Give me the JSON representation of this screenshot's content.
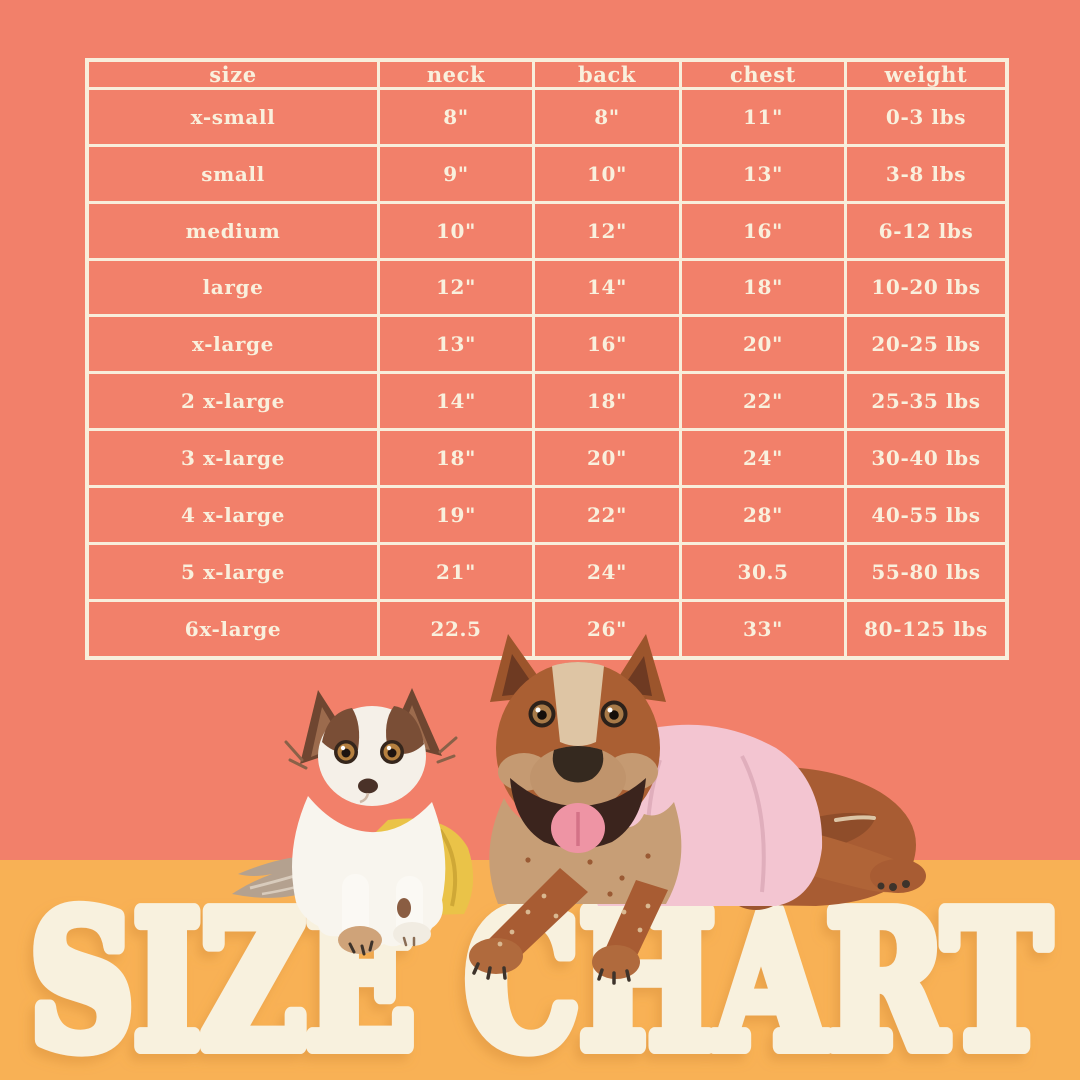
{
  "page": {
    "background_color": "#f2806a",
    "band_color": "#f8b155",
    "cream_color": "#f8eedb"
  },
  "title": {
    "text": "SIZE CHART",
    "color": "#f8f1de"
  },
  "size_table": {
    "headers": [
      "size",
      "neck",
      "back",
      "chest",
      "weight"
    ],
    "rows": [
      [
        "x-small",
        "8\"",
        "8\"",
        "11\"",
        "0-3 lbs"
      ],
      [
        "small",
        "9\"",
        "10\"",
        "13\"",
        "3-8 lbs"
      ],
      [
        "medium",
        "10\"",
        "12\"",
        "16\"",
        "6-12 lbs"
      ],
      [
        "large",
        "12\"",
        "14\"",
        "18\"",
        "10-20 lbs"
      ],
      [
        "x-large",
        "13\"",
        "16\"",
        "20\"",
        "20-25 lbs"
      ],
      [
        "2 x-large",
        "14\"",
        "18\"",
        "22\"",
        "25-35 lbs"
      ],
      [
        "3 x-large",
        "18\"",
        "20\"",
        "24\"",
        "30-40 lbs"
      ],
      [
        "4 x-large",
        "19\"",
        "22\"",
        "28\"",
        "40-55 lbs"
      ],
      [
        "5 x-large",
        "21\"",
        "24\"",
        "30.5",
        "55-80 lbs"
      ],
      [
        "6x-large",
        "22.5",
        "26\"",
        "33\"",
        "80-125 lbs"
      ]
    ]
  },
  "chart_data": {
    "type": "table",
    "title": "SIZE CHART",
    "columns": [
      "size",
      "neck",
      "back",
      "chest",
      "weight"
    ],
    "rows": [
      [
        "x-small",
        "8\"",
        "8\"",
        "11\"",
        "0-3 lbs"
      ],
      [
        "small",
        "9\"",
        "10\"",
        "13\"",
        "3-8 lbs"
      ],
      [
        "medium",
        "10\"",
        "12\"",
        "16\"",
        "6-12 lbs"
      ],
      [
        "large",
        "12\"",
        "14\"",
        "18\"",
        "10-20 lbs"
      ],
      [
        "x-large",
        "13\"",
        "16\"",
        "20\"",
        "20-25 lbs"
      ],
      [
        "2 x-large",
        "14\"",
        "18\"",
        "22\"",
        "25-35 lbs"
      ],
      [
        "3 x-large",
        "18\"",
        "20\"",
        "24\"",
        "30-40 lbs"
      ],
      [
        "4 x-large",
        "19\"",
        "22\"",
        "28\"",
        "40-55 lbs"
      ],
      [
        "5 x-large",
        "21\"",
        "24\"",
        "30.5",
        "55-80 lbs"
      ],
      [
        "6x-large",
        "22.5",
        "26\"",
        "33\"",
        "80-125 lbs"
      ]
    ]
  },
  "illustration": {
    "left_dog": "chihuahua wearing yellow shirt",
    "right_dog": "cattle dog wearing pink shirt",
    "yellow_shirt_color": "#eac348",
    "pink_shirt_color": "#f3c5d1"
  }
}
